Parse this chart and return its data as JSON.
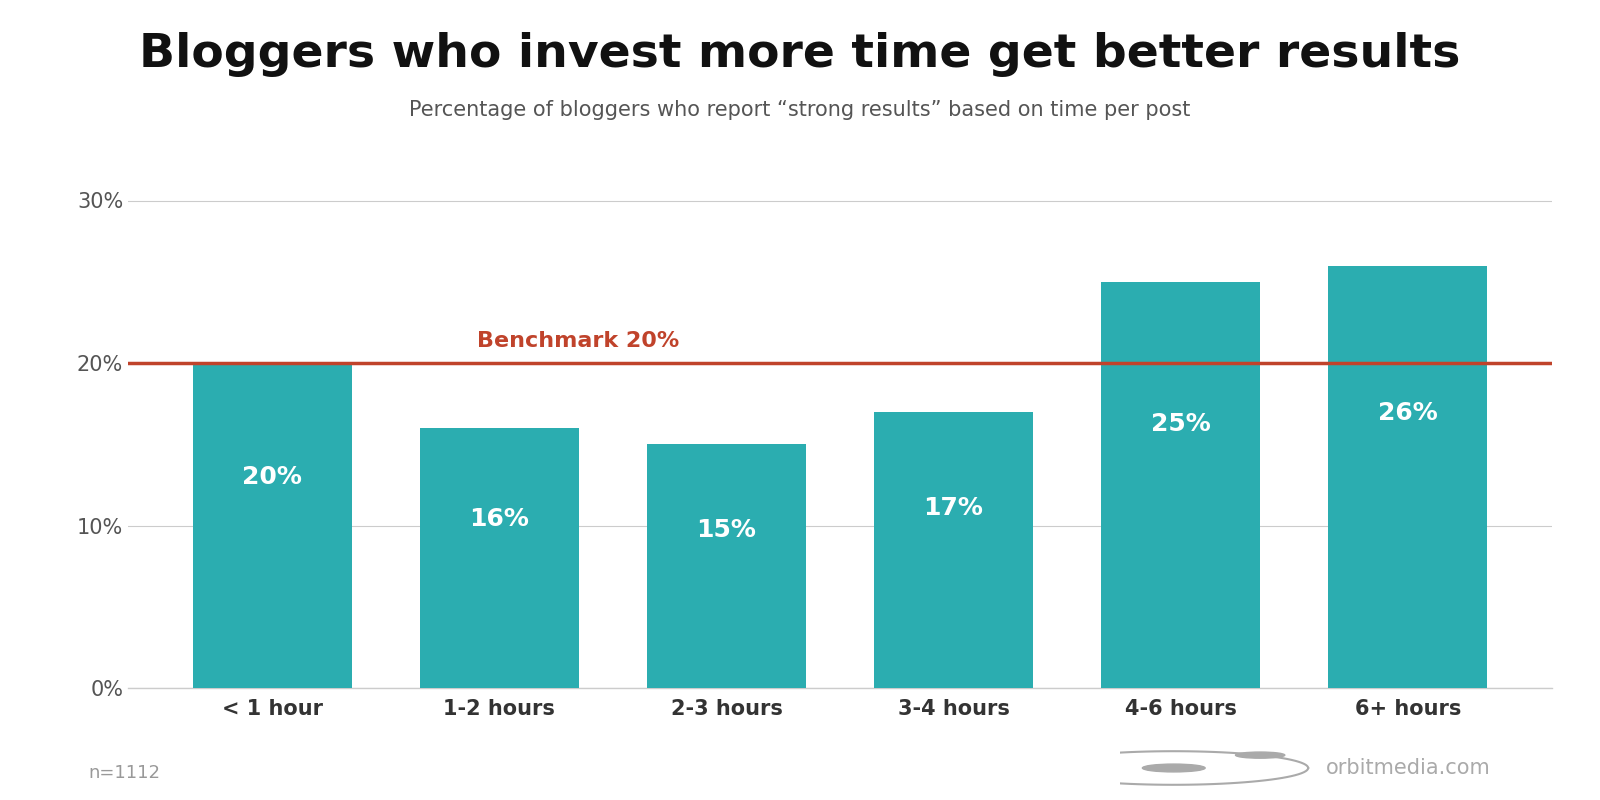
{
  "title": "Bloggers who invest more time get better results",
  "subtitle": "Percentage of bloggers who report “strong results” based on time per post",
  "categories": [
    "< 1 hour",
    "1-2 hours",
    "2-3 hours",
    "3-4 hours",
    "4-6 hours",
    "6+ hours"
  ],
  "values": [
    20,
    16,
    15,
    17,
    25,
    26
  ],
  "bar_color": "#2badb0",
  "benchmark_value": 20,
  "benchmark_label": "Benchmark 20%",
  "benchmark_color": "#c0432b",
  "ylabel_ticks": [
    0,
    10,
    20,
    30
  ],
  "ylabel_tick_labels": [
    "0%",
    "10%",
    "20%",
    "30%"
  ],
  "note": "n=1112",
  "watermark": "orbitmedia.com",
  "title_fontsize": 34,
  "subtitle_fontsize": 15,
  "bar_label_fontsize": 18,
  "tick_fontsize": 15,
  "note_fontsize": 13,
  "watermark_fontsize": 15,
  "benchmark_fontsize": 16,
  "background_color": "#ffffff",
  "grid_color": "#cccccc",
  "ylim": [
    0,
    32
  ],
  "bar_width": 0.7
}
